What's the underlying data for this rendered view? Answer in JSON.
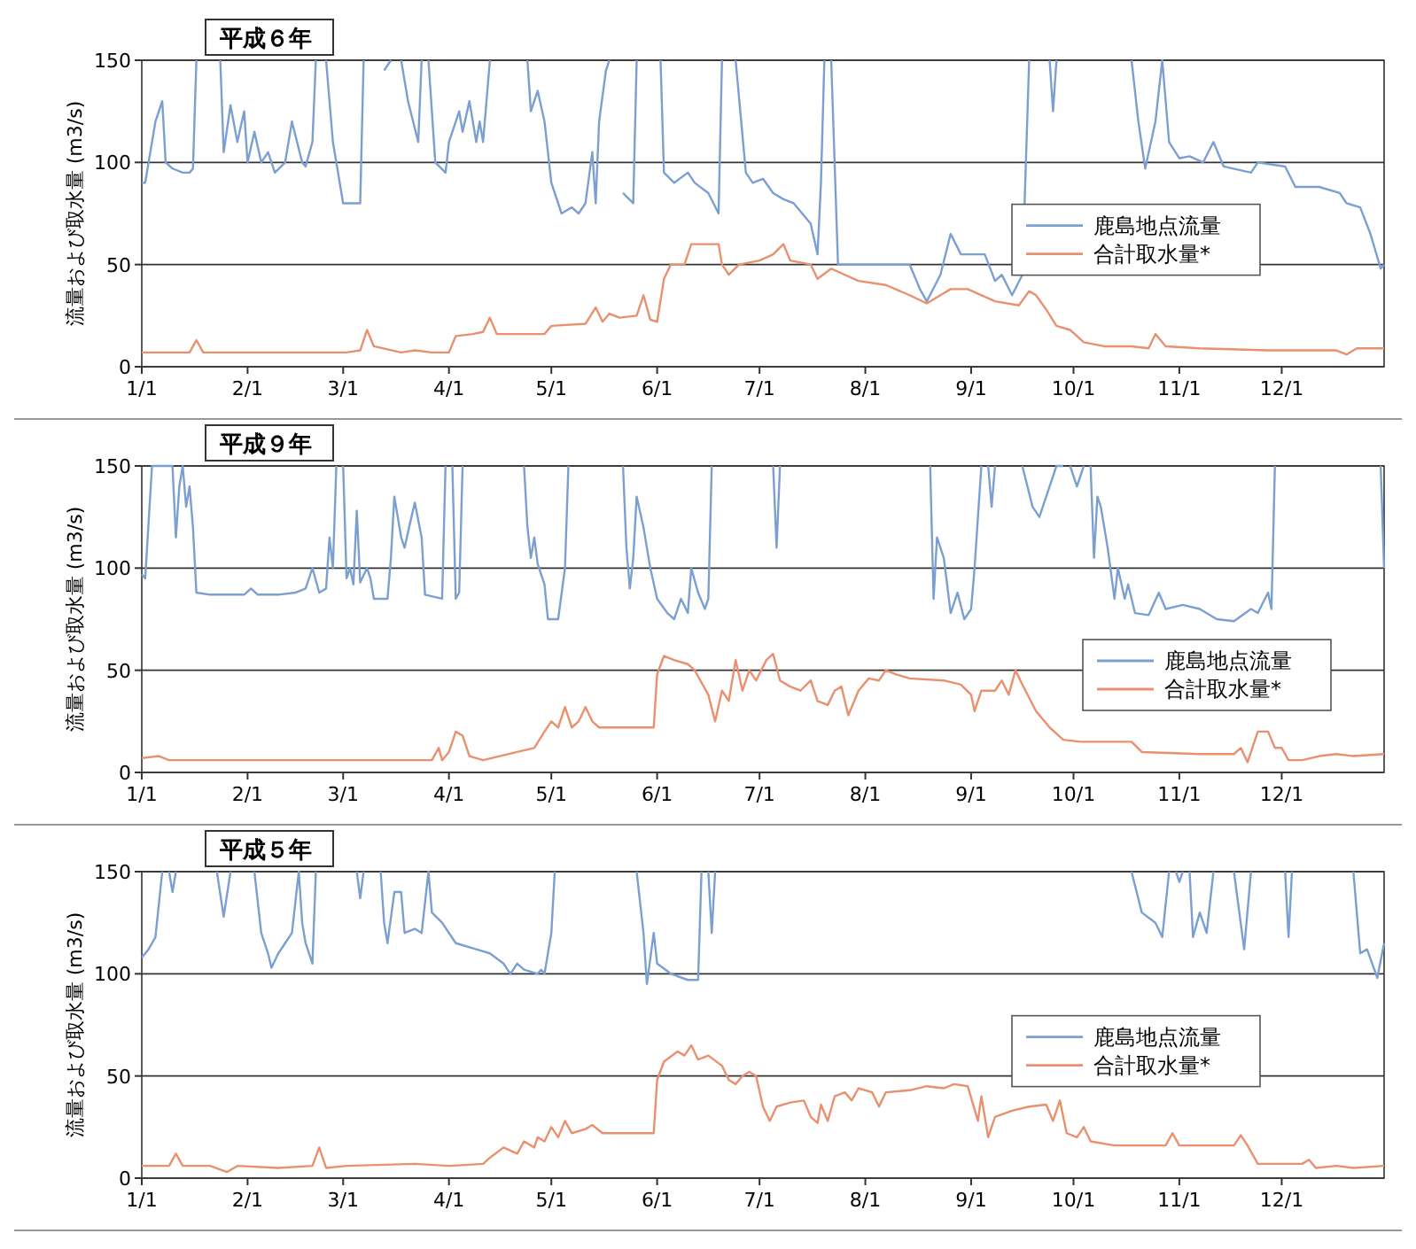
{
  "chart_data": [
    {
      "type": "line",
      "title": "平成６年",
      "ylabel": "流量および取水量 (m3/s)",
      "xlim": [
        "--01-01",
        "--12-31"
      ],
      "xticks": [
        {
          "value": "--01-01",
          "label": "1/1"
        },
        {
          "value": "--02-01",
          "label": "2/1"
        },
        {
          "value": "--03-01",
          "label": "3/1"
        },
        {
          "value": "--04-01",
          "label": "4/1"
        },
        {
          "value": "--05-01",
          "label": "5/1"
        },
        {
          "value": "--06-01",
          "label": "6/1"
        },
        {
          "value": "--07-01",
          "label": "7/1"
        },
        {
          "value": "--08-01",
          "label": "8/1"
        },
        {
          "value": "--09-01",
          "label": "9/1"
        },
        {
          "value": "--10-01",
          "label": "10/1"
        },
        {
          "value": "--11-01",
          "label": "11/1"
        },
        {
          "value": "--12-01",
          "label": "12/1"
        }
      ],
      "ylim": [
        0,
        150
      ],
      "yticks": [
        0,
        50,
        100,
        150
      ],
      "grid": "y",
      "legend": "right",
      "series": [
        {
          "name": "鹿島地点流量",
          "color": "#7c9fd2",
          "x": [
            "--01-01",
            "--01-02",
            "--01-05",
            "--01-07",
            "--01-08",
            "--01-10",
            "--01-13",
            "--01-15",
            "--01-16",
            "--01-17",
            "--01-18",
            "--01-24",
            "--01-25",
            "--01-27",
            "--01-29",
            "--01-31",
            "--02-01",
            "--02-03",
            "--02-05",
            "--02-07",
            "--02-09",
            "--02-12",
            "--02-14",
            "--02-17",
            "--02-18",
            "--02-20",
            "--02-21",
            "--02-22",
            "--02-24",
            "--02-26",
            "--03-01",
            "--03-06",
            "--03-07",
            "--03-08",
            "--03-13",
            "--03-15",
            "--03-16",
            "--03-18",
            "--03-20",
            "--03-23",
            "--03-24",
            "--03-25",
            "--03-26",
            "--03-28",
            "--03-31",
            "--04-01",
            "--04-04",
            "--04-05",
            "--04-07",
            "--04-09",
            "--04-10",
            "--04-11",
            "--04-13",
            "--04-14",
            "--04-24",
            "--04-25",
            "--04-27",
            "--04-29",
            "--05-01",
            "--05-04",
            "--05-07",
            "--05-09",
            "--05-11",
            "--05-13",
            "--05-14",
            "--05-15",
            "--05-17",
            "--05-18",
            "--05-19",
            "--05-22",
            "--05-25",
            "--05-26",
            "--05-27",
            "--06-02",
            "--06-03",
            "--06-06",
            "--06-10",
            "--06-12",
            "--06-16",
            "--06-19",
            "--06-20",
            "--06-21",
            "--06-24",
            "--06-27",
            "--06-29",
            "--07-02",
            "--07-05",
            "--07-08",
            "--07-11",
            "--07-16",
            "--07-18",
            "--07-19",
            "--07-20",
            "--07-21",
            "--07-22",
            "--07-24",
            "--07-27",
            "--08-01",
            "--08-06",
            "--08-14",
            "--08-17",
            "--08-19",
            "--08-23",
            "--08-26",
            "--08-29",
            "--09-01",
            "--09-05",
            "--09-08",
            "--09-10",
            "--09-13",
            "--09-16",
            "--09-18",
            "--09-19",
            "--09-24",
            "--09-25",
            "--09-26",
            "--09-27",
            "--10-18",
            "--10-20",
            "--10-22",
            "--10-25",
            "--10-27",
            "--10-29",
            "--11-01",
            "--11-04",
            "--11-08",
            "--11-11",
            "--11-14",
            "--11-22",
            "--11-24",
            "--12-02",
            "--12-05",
            "--12-12",
            "--12-18",
            "--12-20",
            "--12-24",
            "--12-27",
            "--12-30",
            "--12-31"
          ],
          "values": [
            90,
            90,
            120,
            130,
            100,
            97,
            95,
            95,
            97,
            150,
            null,
            150,
            105,
            128,
            110,
            125,
            100,
            115,
            100,
            105,
            95,
            100,
            120,
            100,
            98,
            110,
            150,
            null,
            150,
            110,
            80,
            80,
            150,
            null,
            145,
            150,
            null,
            150,
            130,
            110,
            150,
            null,
            150,
            100,
            95,
            110,
            125,
            115,
            130,
            110,
            120,
            110,
            150,
            null,
            150,
            125,
            135,
            120,
            90,
            75,
            78,
            75,
            80,
            105,
            80,
            120,
            145,
            150,
            null,
            85,
            80,
            150,
            null,
            150,
            95,
            90,
            95,
            90,
            85,
            75,
            150,
            null,
            150,
            95,
            90,
            92,
            85,
            82,
            80,
            70,
            55,
            90,
            150,
            null,
            150,
            50,
            50,
            50,
            50,
            50,
            38,
            32,
            45,
            65,
            55,
            55,
            55,
            42,
            45,
            35,
            45,
            150,
            null,
            150,
            125,
            150,
            null,
            150,
            120,
            97,
            120,
            150,
            110,
            102,
            103,
            100,
            110,
            98,
            95,
            100,
            98,
            88,
            88,
            85,
            80,
            78,
            65,
            48,
            50
          ]
        },
        {
          "name": "合計取水量*",
          "color": "#e9906e",
          "x": [
            "--01-01",
            "--01-15",
            "--01-17",
            "--01-19",
            "--02-20",
            "--03-02",
            "--03-06",
            "--03-08",
            "--03-10",
            "--03-18",
            "--03-22",
            "--03-27",
            "--04-01",
            "--04-03",
            "--04-08",
            "--04-11",
            "--04-13",
            "--04-15",
            "--04-29",
            "--05-01",
            "--05-11",
            "--05-14",
            "--05-16",
            "--05-18",
            "--05-21",
            "--05-26",
            "--05-28",
            "--05-30",
            "--06-01",
            "--06-03",
            "--06-05",
            "--06-09",
            "--06-11",
            "--06-19",
            "--06-20",
            "--06-22",
            "--06-25",
            "--07-01",
            "--07-05",
            "--07-08",
            "--07-10",
            "--07-16",
            "--07-18",
            "--07-22",
            "--07-30",
            "--08-07",
            "--08-14",
            "--08-19",
            "--08-23",
            "--08-26",
            "--08-31",
            "--09-08",
            "--09-15",
            "--09-18",
            "--09-20",
            "--09-23",
            "--09-26",
            "--09-30",
            "--10-04",
            "--10-10",
            "--10-18",
            "--10-23",
            "--10-25",
            "--10-28",
            "--11-07",
            "--11-27",
            "--12-17",
            "--12-20",
            "--12-23",
            "--12-31"
          ],
          "values": [
            7,
            7,
            13,
            7,
            7,
            7,
            8,
            18,
            10,
            7,
            8,
            7,
            7,
            15,
            16,
            17,
            24,
            16,
            16,
            20,
            21,
            29,
            22,
            26,
            24,
            25,
            35,
            23,
            22,
            43,
            50,
            50,
            60,
            60,
            50,
            45,
            50,
            52,
            55,
            60,
            52,
            50,
            43,
            48,
            42,
            40,
            35,
            31,
            35,
            38,
            38,
            32,
            30,
            37,
            35,
            28,
            20,
            18,
            12,
            10,
            10,
            9,
            16,
            10,
            9,
            8,
            8,
            6,
            9,
            9
          ]
        }
      ]
    },
    {
      "type": "line",
      "title": "平成９年",
      "ylabel": "流量および取水量 (m3/s)",
      "xlim": [
        "--01-01",
        "--12-31"
      ],
      "xticks": [
        {
          "value": "--01-01",
          "label": "1/1"
        },
        {
          "value": "--02-01",
          "label": "2/1"
        },
        {
          "value": "--03-01",
          "label": "3/1"
        },
        {
          "value": "--04-01",
          "label": "4/1"
        },
        {
          "value": "--05-01",
          "label": "5/1"
        },
        {
          "value": "--06-01",
          "label": "6/1"
        },
        {
          "value": "--07-01",
          "label": "7/1"
        },
        {
          "value": "--08-01",
          "label": "8/1"
        },
        {
          "value": "--09-01",
          "label": "9/1"
        },
        {
          "value": "--10-01",
          "label": "10/1"
        },
        {
          "value": "--11-01",
          "label": "11/1"
        },
        {
          "value": "--12-01",
          "label": "12/1"
        }
      ],
      "ylim": [
        0,
        150
      ],
      "yticks": [
        0,
        50,
        100,
        150
      ],
      "grid": "y",
      "legend": "bottom right",
      "series": [
        {
          "name": "鹿島地点流量",
          "color": "#7c9fd2",
          "x": [
            "--01-01",
            "--01-02",
            "--01-04",
            "--01-05",
            "--01-10",
            "--01-11",
            "--01-12",
            "--01-13",
            "--01-14",
            "--01-15",
            "--01-16",
            "--01-17",
            "--01-21",
            "--01-31",
            "--02-02",
            "--02-04",
            "--02-10",
            "--02-15",
            "--02-18",
            "--02-20",
            "--02-22",
            "--02-24",
            "--02-25",
            "--02-26",
            "--02-27",
            "--02-28",
            "--03-01",
            "--03-02",
            "--03-03",
            "--03-04",
            "--03-05",
            "--03-06",
            "--03-08",
            "--03-09",
            "--03-10",
            "--03-14",
            "--03-15",
            "--03-16",
            "--03-18",
            "--03-19",
            "--03-21",
            "--03-22",
            "--03-24",
            "--03-25",
            "--03-30",
            "--03-31",
            "--04-01",
            "--04-02",
            "--04-03",
            "--04-04",
            "--04-05",
            "--04-06",
            "--04-23",
            "--04-24",
            "--04-25",
            "--04-26",
            "--04-27",
            "--04-29",
            "--04-30",
            "--05-03",
            "--05-05",
            "--05-06",
            "--05-07",
            "--05-22",
            "--05-23",
            "--05-24",
            "--05-25",
            "--05-26",
            "--05-28",
            "--05-30",
            "--06-01",
            "--06-04",
            "--06-06",
            "--06-08",
            "--06-10",
            "--06-11",
            "--06-13",
            "--06-15",
            "--06-16",
            "--06-17",
            "--06-18",
            "--07-05",
            "--07-06",
            "--07-07",
            "--07-08",
            "--08-20",
            "--08-21",
            "--08-22",
            "--08-24",
            "--08-26",
            "--08-28",
            "--08-30",
            "--09-01",
            "--09-02",
            "--09-04",
            "--09-05",
            "--09-06",
            "--09-07",
            "--09-08",
            "--09-09",
            "--09-16",
            "--09-19",
            "--09-21",
            "--09-24",
            "--09-26",
            "--09-28",
            "--09-29",
            "--09-30",
            "--10-02",
            "--10-04",
            "--10-05",
            "--10-06",
            "--10-07",
            "--10-08",
            "--10-09",
            "--10-11",
            "--10-13",
            "--10-14",
            "--10-16",
            "--10-17",
            "--10-19",
            "--10-23",
            "--10-26",
            "--10-28",
            "--11-02",
            "--11-07",
            "--11-12",
            "--11-17",
            "--11-22",
            "--11-24",
            "--11-27",
            "--11-28",
            "--11-29",
            "--11-30",
            "--12-30",
            "--12-31"
          ],
          "values": [
            97,
            95,
            150,
            150,
            150,
            115,
            140,
            150,
            130,
            140,
            120,
            88,
            87,
            87,
            90,
            87,
            87,
            88,
            90,
            100,
            88,
            90,
            115,
            100,
            150,
            null,
            150,
            95,
            100,
            92,
            128,
            93,
            100,
            95,
            85,
            85,
            105,
            135,
            115,
            110,
            125,
            132,
            115,
            87,
            85,
            150,
            null,
            150,
            85,
            88,
            150,
            null,
            150,
            120,
            105,
            115,
            102,
            92,
            75,
            75,
            100,
            150,
            null,
            150,
            110,
            90,
            105,
            135,
            120,
            100,
            85,
            78,
            75,
            85,
            78,
            100,
            88,
            80,
            85,
            150,
            null,
            150,
            110,
            150,
            null,
            150,
            85,
            115,
            105,
            78,
            88,
            75,
            80,
            100,
            150,
            null,
            150,
            130,
            150,
            null,
            150,
            130,
            125,
            140,
            150,
            150,
            null,
            150,
            140,
            150,
            null,
            150,
            105,
            135,
            130,
            110,
            85,
            100,
            85,
            92,
            78,
            77,
            88,
            80,
            82,
            80,
            75,
            74,
            80,
            78,
            88,
            80,
            150,
            null,
            150,
            100
          ]
        },
        {
          "name": "合計取水量*",
          "color": "#e9906e",
          "x": [
            "--01-01",
            "--01-06",
            "--01-09",
            "--01-31",
            "--02-20",
            "--03-27",
            "--03-29",
            "--03-30",
            "--04-01",
            "--04-03",
            "--04-05",
            "--04-07",
            "--04-11",
            "--04-21",
            "--04-26",
            "--04-29",
            "--05-01",
            "--05-03",
            "--05-05",
            "--05-07",
            "--05-09",
            "--05-11",
            "--05-13",
            "--05-15",
            "--05-31",
            "--06-01",
            "--06-03",
            "--06-06",
            "--06-10",
            "--06-12",
            "--06-16",
            "--06-18",
            "--06-20",
            "--06-22",
            "--06-24",
            "--06-26",
            "--06-28",
            "--06-30",
            "--07-03",
            "--07-05",
            "--07-07",
            "--07-10",
            "--07-13",
            "--07-16",
            "--07-18",
            "--07-21",
            "--07-23",
            "--07-25",
            "--07-27",
            "--07-30",
            "--08-02",
            "--08-05",
            "--08-07",
            "--08-10",
            "--08-14",
            "--08-24",
            "--08-29",
            "--09-01",
            "--09-02",
            "--09-04",
            "--09-08",
            "--09-10",
            "--09-12",
            "--09-14",
            "--09-16",
            "--09-20",
            "--09-24",
            "--09-28",
            "--10-03",
            "--10-18",
            "--10-21",
            "--11-07",
            "--11-17",
            "--11-19",
            "--11-21",
            "--11-24",
            "--11-27",
            "--11-29",
            "--12-01",
            "--12-03",
            "--12-07",
            "--12-12",
            "--12-17",
            "--12-22",
            "--12-31"
          ],
          "values": [
            7,
            8,
            6,
            6,
            6,
            6,
            12,
            6,
            10,
            20,
            18,
            8,
            6,
            10,
            12,
            20,
            25,
            22,
            32,
            22,
            25,
            32,
            25,
            22,
            22,
            48,
            57,
            55,
            53,
            50,
            38,
            25,
            40,
            35,
            55,
            40,
            50,
            45,
            55,
            58,
            45,
            42,
            40,
            45,
            35,
            33,
            40,
            42,
            28,
            40,
            46,
            45,
            50,
            48,
            46,
            45,
            43,
            38,
            30,
            40,
            40,
            45,
            38,
            50,
            43,
            30,
            22,
            16,
            15,
            15,
            10,
            9,
            9,
            12,
            5,
            20,
            20,
            12,
            12,
            6,
            6,
            8,
            9,
            8,
            9
          ]
        }
      ]
    },
    {
      "type": "line",
      "title": "平成５年",
      "ylabel": "流量および取水量 (m3/s)",
      "xlim": [
        "--01-01",
        "--12-31"
      ],
      "xticks": [
        {
          "value": "--01-01",
          "label": "1/1"
        },
        {
          "value": "--02-01",
          "label": "2/1"
        },
        {
          "value": "--03-01",
          "label": "3/1"
        },
        {
          "value": "--04-01",
          "label": "4/1"
        },
        {
          "value": "--05-01",
          "label": "5/1"
        },
        {
          "value": "--06-01",
          "label": "6/1"
        },
        {
          "value": "--07-01",
          "label": "7/1"
        },
        {
          "value": "--08-01",
          "label": "8/1"
        },
        {
          "value": "--09-01",
          "label": "9/1"
        },
        {
          "value": "--10-01",
          "label": "10/1"
        },
        {
          "value": "--11-01",
          "label": "11/1"
        },
        {
          "value": "--12-01",
          "label": "12/1"
        }
      ],
      "ylim": [
        0,
        150
      ],
      "yticks": [
        0,
        50,
        100,
        150
      ],
      "grid": "y",
      "legend": "right",
      "series": [
        {
          "name": "鹿島地点流量",
          "color": "#7c9fd2",
          "x": [
            "--01-01",
            "--01-03",
            "--01-05",
            "--01-07",
            "--01-08",
            "--01-09",
            "--01-10",
            "--01-11",
            "--01-12",
            "--01-23",
            "--01-25",
            "--01-27",
            "--01-28",
            "--02-03",
            "--02-05",
            "--02-07",
            "--02-08",
            "--02-10",
            "--02-12",
            "--02-14",
            "--02-16",
            "--02-17",
            "--02-18",
            "--02-20",
            "--02-21",
            "--02-22",
            "--03-05",
            "--03-06",
            "--03-07",
            "--03-08",
            "--03-12",
            "--03-13",
            "--03-14",
            "--03-16",
            "--03-18",
            "--03-19",
            "--03-22",
            "--03-24",
            "--03-26",
            "--03-27",
            "--03-30",
            "--04-03",
            "--04-09",
            "--04-13",
            "--04-17",
            "--04-19",
            "--04-21",
            "--04-23",
            "--04-27",
            "--04-28",
            "--04-29",
            "--05-01",
            "--05-02",
            "--05-03",
            "--05-26",
            "--05-28",
            "--05-29",
            "--05-31",
            "--06-01",
            "--06-05",
            "--06-10",
            "--06-13",
            "--06-14",
            "--06-15",
            "--06-16",
            "--06-17",
            "--06-18",
            "--06-19",
            "--10-18",
            "--10-21",
            "--10-25",
            "--10-27",
            "--10-29",
            "--10-30",
            "--10-31",
            "--11-01",
            "--11-02",
            "--11-03",
            "--11-04",
            "--11-05",
            "--11-07",
            "--11-09",
            "--11-11",
            "--11-12",
            "--11-17",
            "--11-20",
            "--11-22",
            "--11-23",
            "--12-02",
            "--12-03",
            "--12-04",
            "--12-05",
            "--12-22",
            "--12-24",
            "--12-26",
            "--12-29",
            "--12-31"
          ],
          "values": [
            108,
            112,
            118,
            150,
            null,
            150,
            140,
            150,
            null,
            150,
            128,
            150,
            null,
            150,
            120,
            110,
            103,
            110,
            115,
            120,
            150,
            125,
            115,
            105,
            150,
            null,
            150,
            137,
            150,
            null,
            150,
            125,
            115,
            140,
            140,
            120,
            122,
            120,
            150,
            130,
            125,
            115,
            112,
            110,
            105,
            100,
            105,
            102,
            100,
            102,
            100,
            120,
            150,
            null,
            150,
            120,
            95,
            120,
            105,
            100,
            97,
            97,
            150,
            null,
            150,
            120,
            150,
            null,
            150,
            130,
            125,
            118,
            150,
            null,
            150,
            145,
            150,
            null,
            150,
            118,
            130,
            120,
            150,
            null,
            150,
            112,
            150,
            null,
            150,
            118,
            150,
            null,
            150,
            110,
            112,
            98,
            115
          ]
        },
        {
          "name": "合計取水量*",
          "color": "#e9906e",
          "x": [
            "--01-01",
            "--01-09",
            "--01-11",
            "--01-13",
            "--01-21",
            "--01-26",
            "--01-29",
            "--02-10",
            "--02-20",
            "--02-22",
            "--02-24",
            "--03-02",
            "--03-22",
            "--04-01",
            "--04-11",
            "--04-13",
            "--04-17",
            "--04-21",
            "--04-23",
            "--04-26",
            "--04-27",
            "--04-29",
            "--05-01",
            "--05-03",
            "--05-05",
            "--05-07",
            "--05-11",
            "--05-13",
            "--05-16",
            "--05-31",
            "--06-01",
            "--06-03",
            "--06-07",
            "--06-09",
            "--06-11",
            "--06-13",
            "--06-16",
            "--06-20",
            "--06-22",
            "--06-24",
            "--06-26",
            "--06-28",
            "--06-30",
            "--07-02",
            "--07-04",
            "--07-06",
            "--07-10",
            "--07-14",
            "--07-16",
            "--07-18",
            "--07-19",
            "--07-21",
            "--07-23",
            "--07-26",
            "--07-28",
            "--07-30",
            "--08-03",
            "--08-05",
            "--08-07",
            "--08-14",
            "--08-19",
            "--08-24",
            "--08-27",
            "--08-31",
            "--09-03",
            "--09-04",
            "--09-06",
            "--09-08",
            "--09-13",
            "--09-18",
            "--09-23",
            "--09-25",
            "--09-27",
            "--09-29",
            "--10-02",
            "--10-04",
            "--10-06",
            "--10-13",
            "--10-28",
            "--10-30",
            "--11-01",
            "--11-17",
            "--11-19",
            "--11-21",
            "--11-24",
            "--12-07",
            "--12-09",
            "--12-11",
            "--12-17",
            "--12-22",
            "--12-31"
          ],
          "values": [
            6,
            6,
            12,
            6,
            6,
            3,
            6,
            5,
            6,
            15,
            5,
            6,
            7,
            6,
            7,
            10,
            15,
            12,
            18,
            15,
            20,
            18,
            25,
            20,
            28,
            22,
            24,
            26,
            22,
            22,
            48,
            57,
            62,
            60,
            65,
            58,
            60,
            55,
            48,
            46,
            50,
            52,
            50,
            35,
            28,
            35,
            37,
            38,
            30,
            27,
            36,
            28,
            40,
            42,
            38,
            44,
            42,
            35,
            42,
            43,
            45,
            44,
            46,
            45,
            28,
            40,
            20,
            30,
            33,
            35,
            36,
            28,
            38,
            22,
            20,
            25,
            18,
            16,
            16,
            22,
            16,
            16,
            21,
            16,
            7,
            7,
            9,
            5,
            6,
            5,
            6
          ]
        }
      ]
    }
  ]
}
